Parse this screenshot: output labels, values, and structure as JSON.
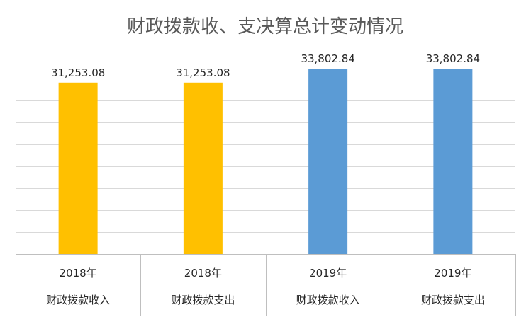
{
  "chart_data": {
    "type": "bar",
    "title": "财政拨款收、支决算总计变动情况",
    "categories": [
      {
        "year": "2018年",
        "item": "财政拨款收入"
      },
      {
        "year": "2018年",
        "item": "财政拨款支出"
      },
      {
        "year": "2019年",
        "item": "财政拨款收入"
      },
      {
        "year": "2019年",
        "item": "财政拨款支出"
      }
    ],
    "values": [
      31253.08,
      31253.08,
      33802.84,
      33802.84
    ],
    "data_labels": [
      "31,253.08",
      "31,253.08",
      "33,802.84",
      "33,802.84"
    ],
    "bar_colors": [
      "#FFC000",
      "#FFC000",
      "#5B9BD5",
      "#5B9BD5"
    ],
    "ylim": [
      0,
      36000
    ],
    "y_axis_labels_visible": false,
    "grid": true,
    "legend": "none"
  }
}
